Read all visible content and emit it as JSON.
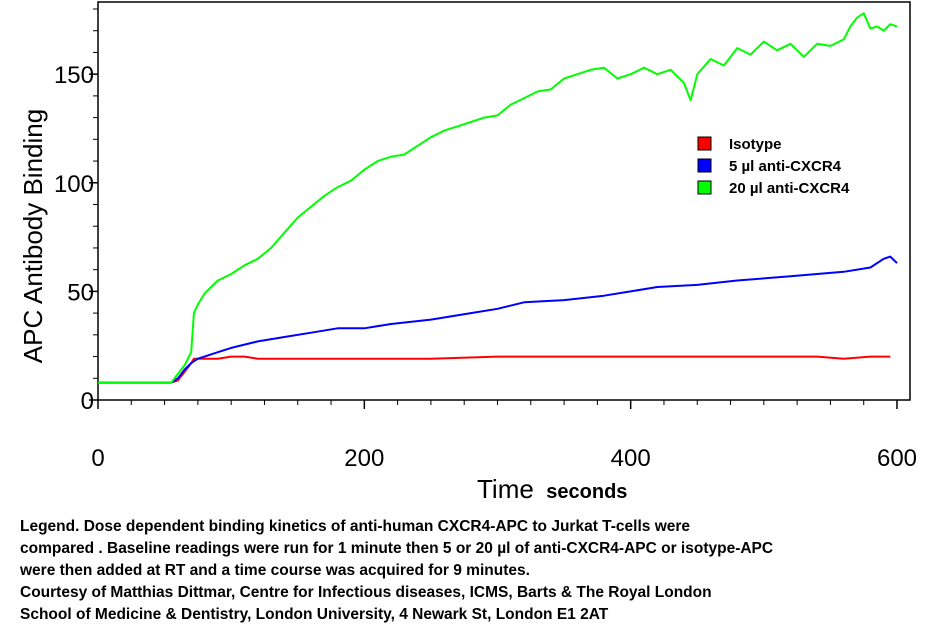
{
  "chart_data": {
    "type": "line",
    "title": "",
    "ylabel": "APC Antibody Binding",
    "xlabel_main": "Time",
    "xlabel_unit": "seconds",
    "xlim": [
      0,
      600
    ],
    "ylim": [
      0,
      180
    ],
    "xticks": [
      0,
      200,
      400,
      600
    ],
    "xtick_labels": [
      "0",
      "200",
      "400",
      "600"
    ],
    "yticks": [
      0,
      50,
      100,
      150
    ],
    "ytick_labels": [
      "0",
      "50",
      "100",
      "150"
    ],
    "grid": false,
    "legend_placement": "right",
    "series": [
      {
        "name": "Isotype",
        "color": "#ff0000",
        "x": [
          0,
          10,
          20,
          30,
          40,
          50,
          55,
          60,
          65,
          70,
          72,
          75,
          80,
          90,
          100,
          110,
          120,
          140,
          160,
          180,
          200,
          250,
          300,
          350,
          400,
          450,
          500,
          540,
          560,
          580,
          590,
          595
        ],
        "y": [
          8,
          8,
          8,
          8,
          8,
          8,
          8,
          9,
          13,
          17,
          19,
          19,
          19,
          19,
          20,
          20,
          19,
          19,
          19,
          19,
          19,
          19,
          20,
          20,
          20,
          20,
          20,
          20,
          19,
          20,
          20,
          20
        ]
      },
      {
        "name": "5 µl anti-CXCR4",
        "color": "#0000ff",
        "x": [
          0,
          10,
          20,
          30,
          40,
          50,
          55,
          60,
          65,
          70,
          75,
          80,
          90,
          100,
          120,
          140,
          160,
          180,
          200,
          220,
          250,
          280,
          300,
          320,
          350,
          380,
          400,
          420,
          450,
          480,
          500,
          520,
          540,
          560,
          580,
          590,
          595,
          600
        ],
        "y": [
          8,
          8,
          8,
          8,
          8,
          8,
          8,
          10,
          14,
          17,
          19,
          20,
          22,
          24,
          27,
          29,
          31,
          33,
          33,
          35,
          37,
          40,
          42,
          45,
          46,
          48,
          50,
          52,
          53,
          55,
          56,
          57,
          58,
          59,
          61,
          65,
          66,
          63
        ]
      },
      {
        "name": "20 µl anti-CXCR4",
        "color": "#00ff00",
        "x": [
          0,
          10,
          20,
          30,
          40,
          50,
          55,
          60,
          65,
          70,
          72,
          75,
          80,
          90,
          100,
          110,
          120,
          130,
          140,
          150,
          160,
          170,
          180,
          190,
          200,
          210,
          220,
          230,
          240,
          250,
          260,
          270,
          280,
          290,
          300,
          310,
          320,
          330,
          340,
          350,
          360,
          370,
          380,
          390,
          400,
          410,
          420,
          430,
          440,
          445,
          450,
          460,
          470,
          480,
          490,
          500,
          510,
          520,
          530,
          540,
          550,
          560,
          565,
          570,
          575,
          580,
          585,
          590,
          595,
          600
        ],
        "y": [
          8,
          8,
          8,
          8,
          8,
          8,
          8,
          12,
          16,
          22,
          40,
          44,
          49,
          55,
          58,
          62,
          65,
          70,
          77,
          84,
          89,
          94,
          98,
          101,
          106,
          110,
          112,
          113,
          117,
          121,
          124,
          126,
          128,
          130,
          131,
          136,
          139,
          142,
          143,
          148,
          150,
          152,
          153,
          148,
          150,
          153,
          150,
          152,
          146,
          138,
          150,
          157,
          154,
          162,
          159,
          165,
          161,
          164,
          158,
          164,
          163,
          166,
          172,
          176,
          178,
          171,
          172,
          170,
          173,
          172
        ]
      }
    ]
  },
  "caption": {
    "line1": "Legend.  Dose dependent binding kinetics of anti-human CXCR4-APC to Jurkat T-cells were",
    "line2": "compared . Baseline readings were run for 1 minute then 5 or 20 µl of anti-CXCR4-APC or isotype-APC",
    "line3": " were then added at RT and a time course was acquired for 9 minutes.",
    "line4": "Courtesy of Matthias Dittmar, Centre for Infectious diseases, ICMS, Barts & The Royal London",
    "line5": "School of Medicine & Dentistry, London University, 4 Newark St, London E1 2AT"
  }
}
